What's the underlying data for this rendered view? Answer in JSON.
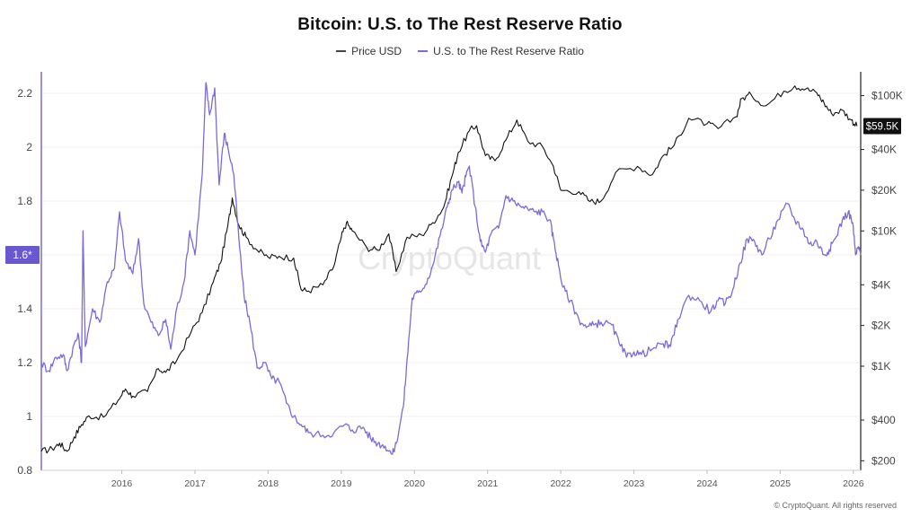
{
  "page": {
    "footer": "© CryptoQuant. All rights reserved"
  },
  "chart_data": {
    "type": "line",
    "title": "Bitcoin: U.S. to The Rest Reserve Ratio",
    "watermark": "CryptoQuant",
    "legend_position": "top-center",
    "grid": true,
    "x_ticks": [
      "2016",
      "2017",
      "2018",
      "2019",
      "2020",
      "2021",
      "2022",
      "2023",
      "2024",
      "2025",
      "2026"
    ],
    "x_range": [
      2015.35,
      2026.55
    ],
    "y_left": {
      "ticks": [
        "0.8",
        "1",
        "1.2",
        "1.4",
        "1.6",
        "1.8",
        "2",
        "2.2"
      ],
      "tick_values": [
        0.8,
        1.0,
        1.2,
        1.4,
        1.6,
        1.8,
        2.0,
        2.2
      ],
      "range": [
        0.8,
        2.28
      ],
      "scale": "linear",
      "marker_label": "1.6*",
      "marker_value": 1.6
    },
    "y_right": {
      "ticks": [
        "$200",
        "$400",
        "$1K",
        "$2K",
        "$4K",
        "$10K",
        "$20K",
        "$40K",
        "$100K"
      ],
      "tick_values": [
        200,
        400,
        1000,
        2000,
        4000,
        10000,
        20000,
        40000,
        100000
      ],
      "range": [
        170,
        150000
      ],
      "scale": "log",
      "marker_label": "$59.5K",
      "marker_value": 59500
    },
    "series": [
      {
        "name": "Price USD",
        "axis": "right",
        "color": "#111111",
        "points": [
          [
            2015.35,
            235
          ],
          [
            2015.5,
            245
          ],
          [
            2015.6,
            270
          ],
          [
            2015.7,
            235
          ],
          [
            2015.8,
            300
          ],
          [
            2015.9,
            370
          ],
          [
            2016.0,
            430
          ],
          [
            2016.2,
            420
          ],
          [
            2016.4,
            560
          ],
          [
            2016.5,
            680
          ],
          [
            2016.6,
            600
          ],
          [
            2016.8,
            650
          ],
          [
            2016.95,
            960
          ],
          [
            2017.05,
            900
          ],
          [
            2017.2,
            1100
          ],
          [
            2017.4,
            1800
          ],
          [
            2017.55,
            2500
          ],
          [
            2017.7,
            4200
          ],
          [
            2017.8,
            5800
          ],
          [
            2017.9,
            11000
          ],
          [
            2017.96,
            17500
          ],
          [
            2018.05,
            11000
          ],
          [
            2018.15,
            9000
          ],
          [
            2018.3,
            7200
          ],
          [
            2018.45,
            6400
          ],
          [
            2018.6,
            6500
          ],
          [
            2018.8,
            6300
          ],
          [
            2018.9,
            3700
          ],
          [
            2019.0,
            3600
          ],
          [
            2019.2,
            4000
          ],
          [
            2019.35,
            5500
          ],
          [
            2019.45,
            9000
          ],
          [
            2019.52,
            11500
          ],
          [
            2019.6,
            10000
          ],
          [
            2019.8,
            7500
          ],
          [
            2019.95,
            7200
          ],
          [
            2020.1,
            9500
          ],
          [
            2020.2,
            5000
          ],
          [
            2020.35,
            9000
          ],
          [
            2020.55,
            9300
          ],
          [
            2020.7,
            11500
          ],
          [
            2020.85,
            15000
          ],
          [
            2020.96,
            25000
          ],
          [
            2021.05,
            38000
          ],
          [
            2021.2,
            55000
          ],
          [
            2021.3,
            60000
          ],
          [
            2021.42,
            36000
          ],
          [
            2021.55,
            33000
          ],
          [
            2021.7,
            47000
          ],
          [
            2021.85,
            66000
          ],
          [
            2022.0,
            46000
          ],
          [
            2022.2,
            42000
          ],
          [
            2022.35,
            30000
          ],
          [
            2022.45,
            20000
          ],
          [
            2022.7,
            19500
          ],
          [
            2022.85,
            16500
          ],
          [
            2023.0,
            16600
          ],
          [
            2023.2,
            27000
          ],
          [
            2023.5,
            30000
          ],
          [
            2023.7,
            26000
          ],
          [
            2023.85,
            36000
          ],
          [
            2024.0,
            43000
          ],
          [
            2024.2,
            68000
          ],
          [
            2024.45,
            62000
          ],
          [
            2024.6,
            57000
          ],
          [
            2024.85,
            70000
          ],
          [
            2024.92,
            95000
          ],
          [
            2025.05,
            102000
          ],
          [
            2025.25,
            84000
          ],
          [
            2025.5,
            108000
          ],
          [
            2025.65,
            118000
          ],
          [
            2025.8,
            112000
          ],
          [
            2025.95,
            105000
          ],
          [
            2026.05,
            88000
          ],
          [
            2026.15,
            74000
          ],
          [
            2026.3,
            78000
          ],
          [
            2026.42,
            66000
          ],
          [
            2026.5,
            59500
          ]
        ]
      },
      {
        "name": "U.S. to The Rest Reserve Ratio",
        "axis": "left",
        "color": "#7b6ad8",
        "points": [
          [
            2015.35,
            1.2
          ],
          [
            2015.45,
            1.17
          ],
          [
            2015.55,
            1.22
          ],
          [
            2015.65,
            1.23
          ],
          [
            2015.7,
            1.17
          ],
          [
            2015.8,
            1.27
          ],
          [
            2015.86,
            1.3
          ],
          [
            2015.9,
            1.2
          ],
          [
            2015.92,
            1.69
          ],
          [
            2015.95,
            1.26
          ],
          [
            2016.05,
            1.4
          ],
          [
            2016.15,
            1.35
          ],
          [
            2016.25,
            1.5
          ],
          [
            2016.35,
            1.55
          ],
          [
            2016.42,
            1.76
          ],
          [
            2016.5,
            1.58
          ],
          [
            2016.6,
            1.53
          ],
          [
            2016.68,
            1.66
          ],
          [
            2016.75,
            1.42
          ],
          [
            2016.85,
            1.35
          ],
          [
            2016.95,
            1.3
          ],
          [
            2017.05,
            1.36
          ],
          [
            2017.12,
            1.25
          ],
          [
            2017.2,
            1.4
          ],
          [
            2017.3,
            1.5
          ],
          [
            2017.38,
            1.69
          ],
          [
            2017.45,
            1.6
          ],
          [
            2017.55,
            1.9
          ],
          [
            2017.6,
            2.24
          ],
          [
            2017.65,
            2.12
          ],
          [
            2017.72,
            2.22
          ],
          [
            2017.78,
            1.86
          ],
          [
            2017.85,
            2.05
          ],
          [
            2017.9,
            2.0
          ],
          [
            2017.98,
            1.9
          ],
          [
            2018.05,
            1.66
          ],
          [
            2018.12,
            1.45
          ],
          [
            2018.2,
            1.35
          ],
          [
            2018.3,
            1.18
          ],
          [
            2018.4,
            1.2
          ],
          [
            2018.5,
            1.14
          ],
          [
            2018.6,
            1.13
          ],
          [
            2018.7,
            1.05
          ],
          [
            2018.8,
            1.0
          ],
          [
            2018.9,
            0.97
          ],
          [
            2019.0,
            0.94
          ],
          [
            2019.2,
            0.93
          ],
          [
            2019.35,
            0.94
          ],
          [
            2019.5,
            0.97
          ],
          [
            2019.6,
            0.95
          ],
          [
            2019.75,
            0.96
          ],
          [
            2019.85,
            0.92
          ],
          [
            2019.95,
            0.9
          ],
          [
            2020.05,
            0.89
          ],
          [
            2020.15,
            0.86
          ],
          [
            2020.2,
            0.9
          ],
          [
            2020.3,
            1.04
          ],
          [
            2020.35,
            1.21
          ],
          [
            2020.42,
            1.44
          ],
          [
            2020.5,
            1.46
          ],
          [
            2020.6,
            1.49
          ],
          [
            2020.7,
            1.56
          ],
          [
            2020.8,
            1.67
          ],
          [
            2020.9,
            1.78
          ],
          [
            2020.96,
            1.84
          ],
          [
            2021.05,
            1.87
          ],
          [
            2021.1,
            1.83
          ],
          [
            2021.15,
            1.89
          ],
          [
            2021.2,
            1.93
          ],
          [
            2021.28,
            1.78
          ],
          [
            2021.35,
            1.65
          ],
          [
            2021.42,
            1.61
          ],
          [
            2021.5,
            1.68
          ],
          [
            2021.6,
            1.7
          ],
          [
            2021.7,
            1.82
          ],
          [
            2021.8,
            1.8
          ],
          [
            2021.9,
            1.78
          ],
          [
            2022.0,
            1.77
          ],
          [
            2022.1,
            1.76
          ],
          [
            2022.2,
            1.76
          ],
          [
            2022.3,
            1.73
          ],
          [
            2022.35,
            1.66
          ],
          [
            2022.42,
            1.56
          ],
          [
            2022.48,
            1.48
          ],
          [
            2022.58,
            1.43
          ],
          [
            2022.7,
            1.36
          ],
          [
            2022.8,
            1.33
          ],
          [
            2022.9,
            1.34
          ],
          [
            2023.0,
            1.35
          ],
          [
            2023.15,
            1.34
          ],
          [
            2023.25,
            1.27
          ],
          [
            2023.35,
            1.22
          ],
          [
            2023.45,
            1.24
          ],
          [
            2023.55,
            1.23
          ],
          [
            2023.7,
            1.25
          ],
          [
            2023.85,
            1.27
          ],
          [
            2023.95,
            1.26
          ],
          [
            2024.05,
            1.36
          ],
          [
            2024.2,
            1.45
          ],
          [
            2024.35,
            1.43
          ],
          [
            2024.5,
            1.39
          ],
          [
            2024.6,
            1.43
          ],
          [
            2024.7,
            1.42
          ],
          [
            2024.8,
            1.47
          ],
          [
            2024.9,
            1.57
          ],
          [
            2025.0,
            1.66
          ],
          [
            2025.1,
            1.65
          ],
          [
            2025.2,
            1.6
          ],
          [
            2025.3,
            1.66
          ],
          [
            2025.42,
            1.73
          ],
          [
            2025.55,
            1.79
          ],
          [
            2025.65,
            1.73
          ],
          [
            2025.75,
            1.7
          ],
          [
            2025.85,
            1.64
          ],
          [
            2025.95,
            1.65
          ],
          [
            2026.05,
            1.6
          ],
          [
            2026.12,
            1.62
          ],
          [
            2026.2,
            1.66
          ],
          [
            2026.3,
            1.73
          ],
          [
            2026.38,
            1.76
          ],
          [
            2026.44,
            1.72
          ],
          [
            2026.48,
            1.6
          ],
          [
            2026.52,
            1.63
          ],
          [
            2026.55,
            1.6
          ]
        ]
      }
    ]
  }
}
